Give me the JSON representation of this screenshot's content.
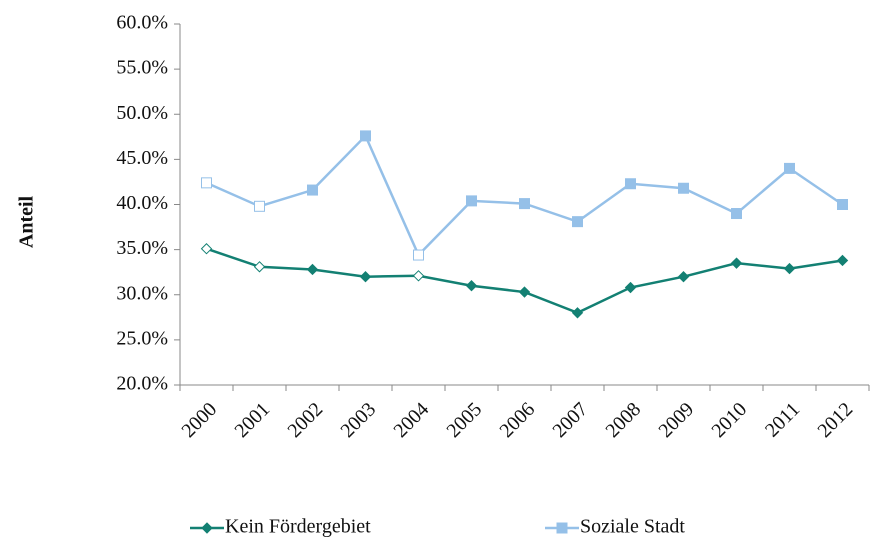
{
  "chart_data": {
    "type": "line",
    "y_label": "Anteil",
    "categories": [
      "2000",
      "2001",
      "2002",
      "2003",
      "2004",
      "2005",
      "2006",
      "2007",
      "2008",
      "2009",
      "2010",
      "2011",
      "2012"
    ],
    "series": [
      {
        "name": "Kein Fördergebiet",
        "color": "#138073",
        "marker": "diamond",
        "hollow_points": [
          0,
          1,
          4
        ],
        "values": [
          35.1,
          33.1,
          32.8,
          32.0,
          32.1,
          31.0,
          30.3,
          28.0,
          30.8,
          32.0,
          33.5,
          32.9,
          33.8
        ]
      },
      {
        "name": "Soziale Stadt",
        "color": "#95c0e8",
        "marker": "square",
        "hollow_points": [
          0,
          1,
          4
        ],
        "values": [
          42.4,
          39.8,
          41.6,
          47.6,
          34.4,
          40.4,
          40.1,
          38.1,
          42.3,
          41.8,
          39.0,
          44.0,
          40.0
        ]
      }
    ],
    "ylim": [
      20,
      60
    ],
    "yticks": [
      {
        "value": 20,
        "label": "20.0%"
      },
      {
        "value": 25,
        "label": "25.0%"
      },
      {
        "value": 30,
        "label": "30.0%"
      },
      {
        "value": 35,
        "label": "35.0%"
      },
      {
        "value": 40,
        "label": "40.0%"
      },
      {
        "value": 45,
        "label": "45.0%"
      },
      {
        "value": 50,
        "label": "50.0%"
      },
      {
        "value": 55,
        "label": "55.0%"
      },
      {
        "value": 60,
        "label": "60.0%"
      }
    ],
    "grid": false,
    "legend": "bottom"
  }
}
